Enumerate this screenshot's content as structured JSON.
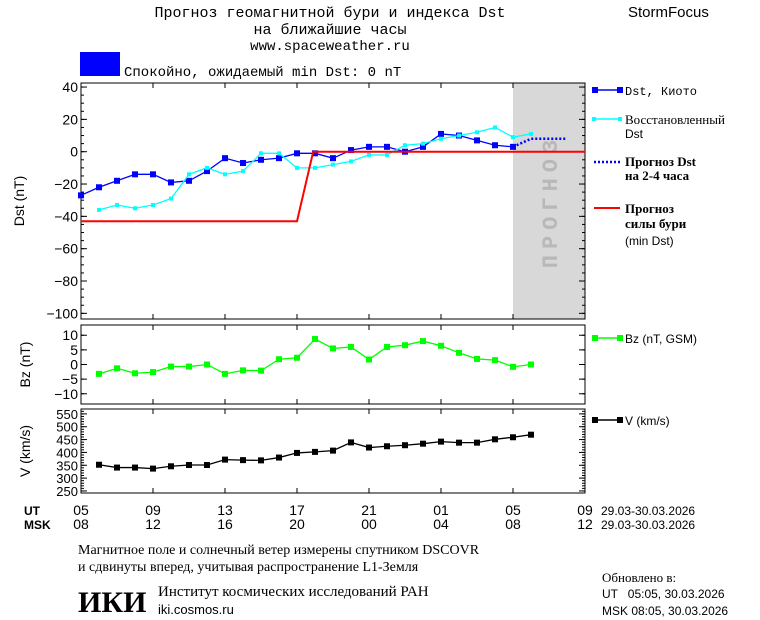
{
  "header": {
    "title_line1": "Прогноз геомагнитной бури и индекса Dst",
    "title_line2": "на ближайшие часы",
    "site": "www.spaceweather.ru",
    "brand": "StormFocus",
    "status_color": "#0000ff",
    "status_text": "Спокойно, ожидаемый min Dst: 0 nT"
  },
  "legend": {
    "kyoto": "Dst, Киото",
    "restored_1": "Восстановленный",
    "restored_2": "Dst",
    "forecast_1": "Прогноз Dst",
    "forecast_2": "на 2-4 часа",
    "storm_1": "Прогноз",
    "storm_2": "силы бури",
    "storm_3": "(min Dst)",
    "bz": "Bz (nT, GSM)",
    "v": "V (km/s)"
  },
  "forecast_band_label": "ПРОГНОЗ",
  "time_axis": {
    "ut_label": "UT",
    "msk_label": "MSK",
    "ut_ticks": [
      "05",
      "09",
      "13",
      "17",
      "21",
      "01",
      "05",
      "09"
    ],
    "msk_ticks": [
      "08",
      "12",
      "16",
      "20",
      "00",
      "04",
      "08",
      "12"
    ],
    "date_range_ut": "29.03-30.03.2026",
    "date_range_msk": "29.03-30.03.2026"
  },
  "footer": {
    "note_1": "Магнитное поле и солнечный ветер измерены спутником DSCOVR",
    "note_2": "и сдвинуты вперед, учитывая распространение L1-Земля",
    "logo": "ИКИ",
    "institute": "Институт космических исследований РАН",
    "institute_site": "iki.cosmos.ru",
    "updated_label": "Обновлено в:",
    "updated_ut": "UT   05:05, 30.03.2026",
    "updated_msk": "MSK 08:05, 30.03.2026"
  },
  "chart_data": [
    {
      "type": "line",
      "ylabel": "Dst (nT)",
      "ylim": [
        -103.5,
        42.5
      ],
      "yticks": [
        40,
        20,
        0,
        -20,
        -40,
        -60,
        -80,
        -100
      ],
      "x_hours_from": "05 UT 29.03",
      "xlim": [
        0,
        28
      ],
      "forecast_band_hours": [
        24,
        28
      ],
      "series": [
        {
          "name": "Dst, Киото",
          "color": "#0000ff",
          "x": [
            0,
            1,
            2,
            3,
            4,
            5,
            6,
            7,
            8,
            9,
            10,
            11,
            12,
            13,
            14,
            15,
            16,
            17,
            18,
            19,
            20,
            21,
            22,
            23,
            24
          ],
          "values": [
            -27,
            -22,
            -18,
            -14,
            -14,
            -19,
            -18,
            -12,
            -4,
            -7,
            -5,
            -4,
            -1,
            -1,
            -4,
            1,
            3,
            3,
            0,
            3,
            11,
            10,
            7,
            4,
            3
          ]
        },
        {
          "name": "Восстановленный Dst",
          "color": "#00ffff",
          "x": [
            1,
            2,
            3,
            4,
            5,
            6,
            7,
            8,
            9,
            10,
            11,
            12,
            13,
            14,
            15,
            16,
            17,
            18,
            19,
            20,
            21,
            22,
            23,
            24,
            25
          ],
          "values": [
            -36,
            -33,
            -35,
            -33,
            -29,
            -14,
            -10,
            -14,
            -12,
            -1,
            -1,
            -10,
            -10,
            -8,
            -6,
            -2,
            -2,
            4,
            5,
            8,
            10,
            12,
            15,
            9,
            11
          ]
        },
        {
          "name": "Прогноз Dst на 2-4 часа",
          "color": "#0000ff",
          "x": [
            24,
            25,
            27
          ],
          "values": [
            3,
            8,
            8
          ]
        },
        {
          "name": "Прогноз силы бури (min Dst)",
          "color": "#ff0000",
          "x": [
            0,
            12,
            12.9,
            28
          ],
          "values": [
            -43,
            -43,
            0,
            0
          ]
        }
      ]
    },
    {
      "type": "line",
      "ylabel": "Bz (nT)",
      "ylim": [
        -13.5,
        13.5
      ],
      "yticks": [
        10,
        5,
        0,
        -5,
        -10
      ],
      "xlim": [
        0,
        28
      ],
      "series": [
        {
          "name": "Bz (nT, GSM)",
          "color": "#00ff00",
          "x": [
            1,
            2,
            3,
            4,
            5,
            6,
            7,
            8,
            9,
            10,
            11,
            12,
            13,
            14,
            15,
            16,
            17,
            18,
            19,
            20,
            21,
            22,
            23,
            24,
            25
          ],
          "values": [
            -3.2,
            -1.3,
            -3,
            -2.6,
            -0.7,
            -0.7,
            0,
            -3.2,
            -2,
            -2.1,
            1.8,
            2.3,
            8.7,
            5.5,
            6,
            1.7,
            6,
            6.6,
            8,
            6.4,
            4,
            1.9,
            1.5,
            -0.8,
            0
          ]
        }
      ]
    },
    {
      "type": "line",
      "ylabel": "V (km/s)",
      "ylim": [
        242,
        569
      ],
      "yticks": [
        550,
        500,
        450,
        400,
        350,
        300,
        250
      ],
      "xlim": [
        0,
        28
      ],
      "series": [
        {
          "name": "V (km/s)",
          "color": "#000000",
          "x": [
            1,
            2,
            3,
            4,
            5,
            6,
            7,
            8,
            9,
            10,
            11,
            12,
            13,
            14,
            15,
            16,
            17,
            18,
            19,
            20,
            21,
            22,
            23,
            24,
            25
          ],
          "values": [
            352,
            341,
            341,
            337,
            346,
            351,
            351,
            372,
            370,
            369,
            380,
            398,
            402,
            407,
            439,
            419,
            424,
            428,
            434,
            442,
            438,
            438,
            451,
            459,
            469
          ]
        }
      ]
    }
  ]
}
